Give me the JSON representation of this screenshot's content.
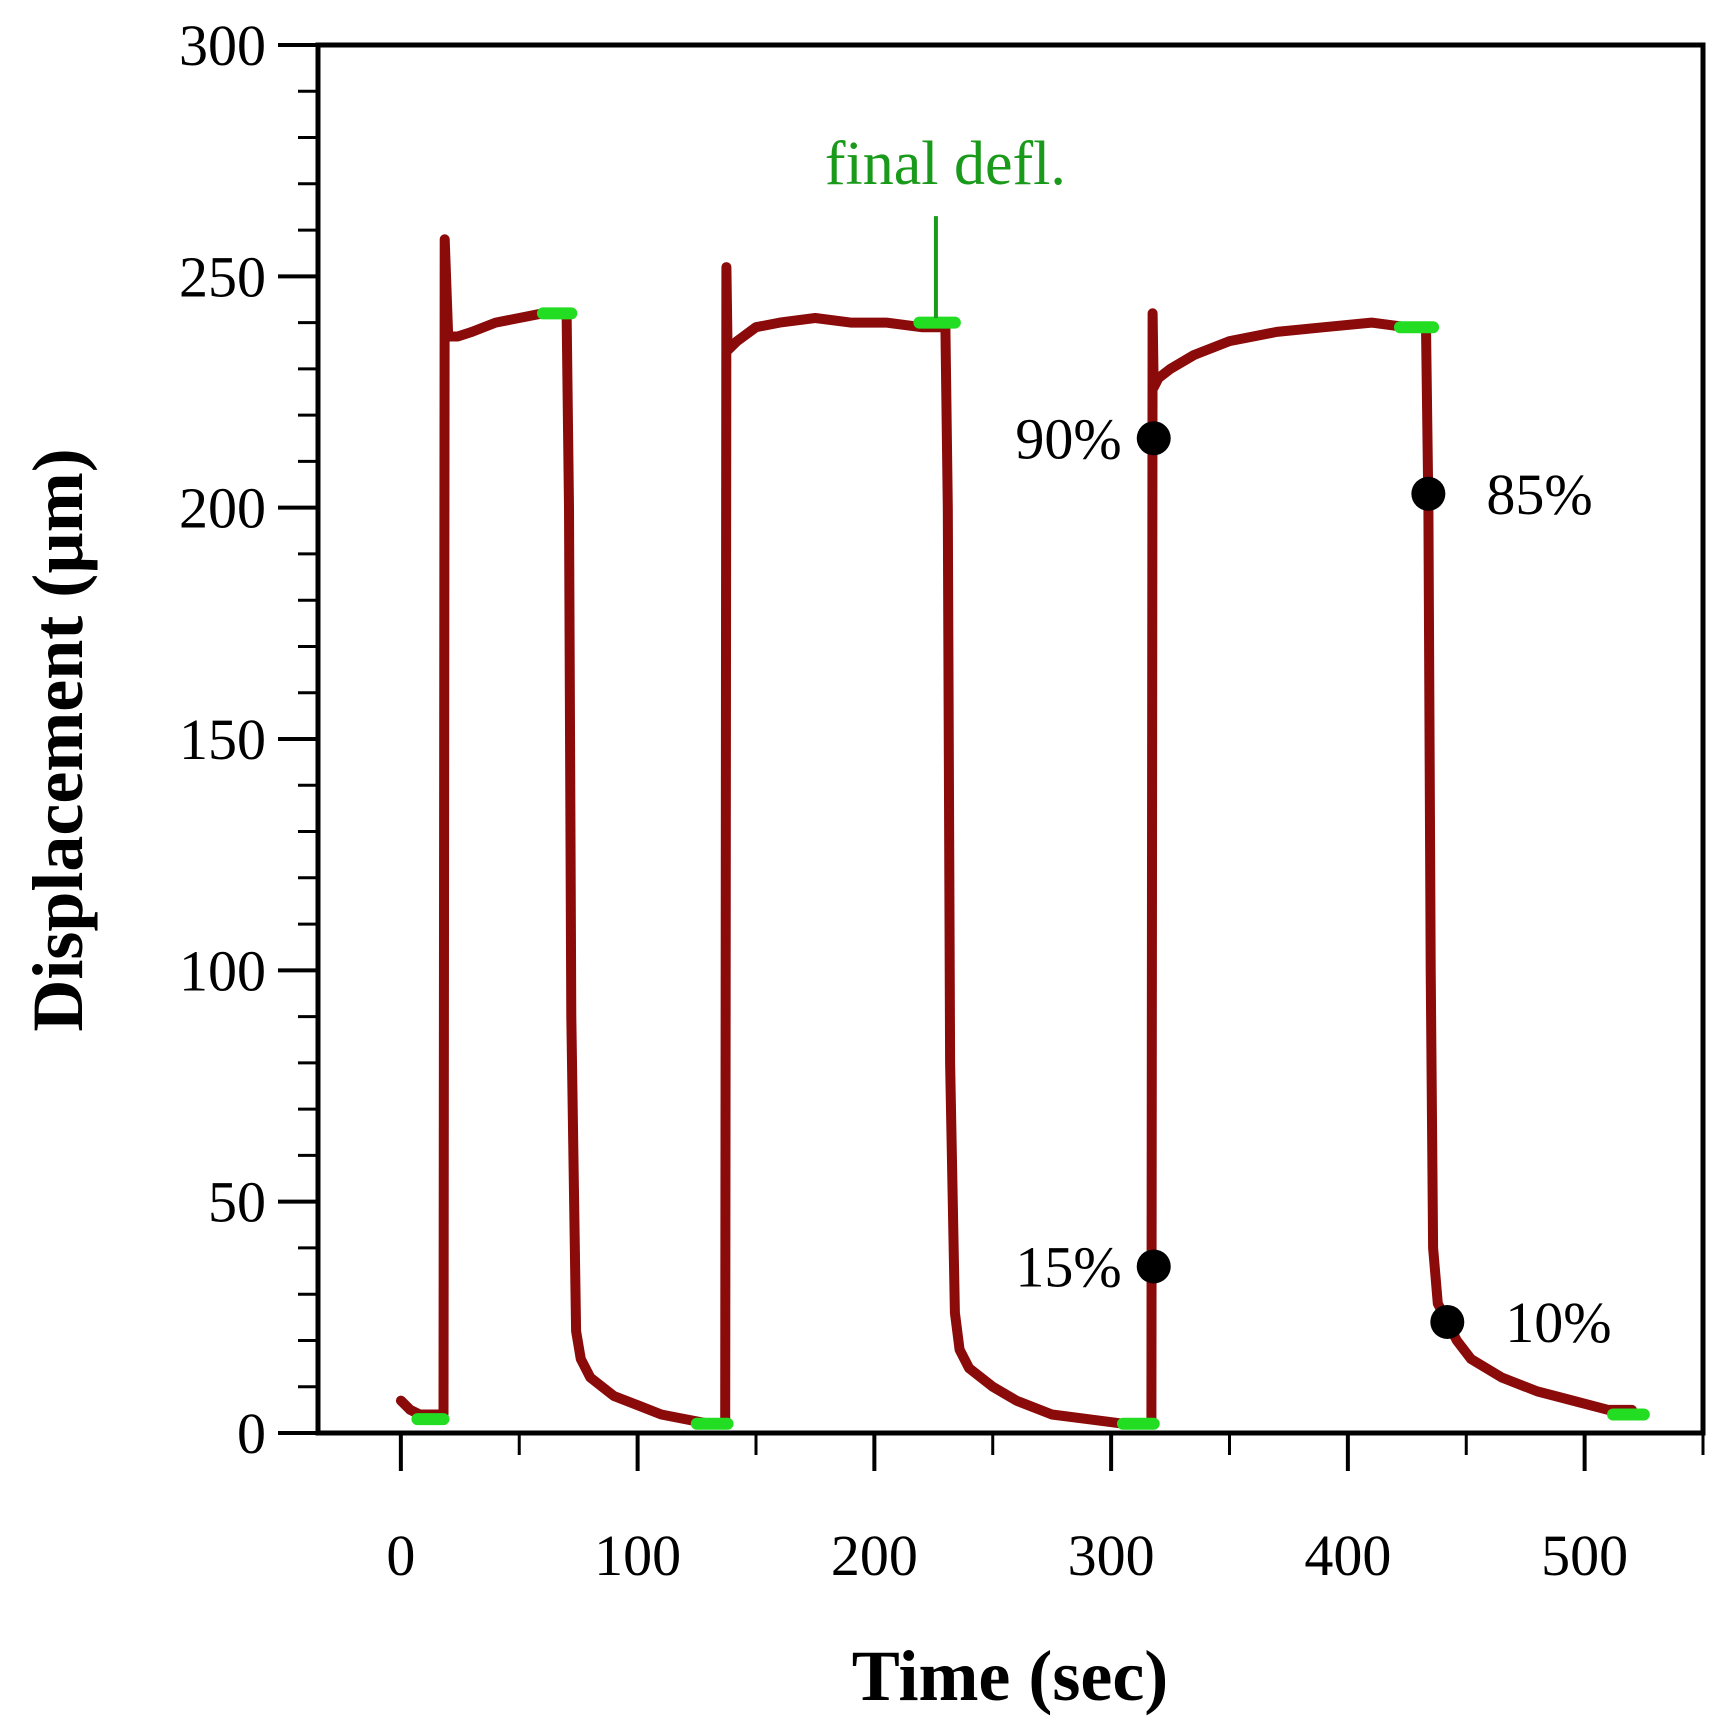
{
  "chart_data": {
    "type": "line",
    "title": "",
    "xlabel": "Time (sec)",
    "ylabel": "Displacement (µm)",
    "xlim": [
      -35,
      550
    ],
    "ylim": [
      0,
      300
    ],
    "xticks": [
      0,
      100,
      200,
      300,
      400,
      500
    ],
    "yticks": [
      0,
      50,
      100,
      150,
      200,
      250,
      300
    ],
    "grid": false,
    "series": [
      {
        "name": "displacement",
        "color": "#8b0a0a",
        "x": [
          0,
          4,
          8,
          12,
          16,
          18,
          18.5,
          20,
          24,
          30,
          40,
          50,
          60,
          66,
          70,
          71,
          72,
          74,
          76,
          80,
          90,
          100,
          110,
          120,
          130,
          136,
          137,
          137.5,
          138,
          142,
          150,
          160,
          175,
          190,
          205,
          220,
          228,
          230,
          231,
          232,
          234,
          236,
          240,
          250,
          260,
          275,
          290,
          305,
          316,
          317,
          317.5,
          318,
          320,
          325,
          335,
          350,
          370,
          390,
          410,
          425,
          433,
          434,
          435,
          436,
          438,
          442,
          446,
          452,
          465,
          480,
          495,
          510,
          520
        ],
        "y": [
          7,
          5,
          4,
          4,
          4,
          4,
          258,
          237,
          237,
          238,
          240,
          241,
          242,
          242,
          242,
          200,
          90,
          22,
          16,
          12,
          8,
          6,
          4,
          3,
          2,
          2,
          2,
          252,
          234,
          236,
          239,
          240,
          241,
          240,
          240,
          239,
          239,
          239,
          200,
          80,
          26,
          18,
          14,
          10,
          7,
          4,
          3,
          2,
          2,
          2,
          242,
          226,
          228,
          230,
          233,
          236,
          238,
          239,
          240,
          239,
          239,
          200,
          100,
          40,
          28,
          24,
          20,
          16,
          12,
          9,
          7,
          5,
          5
        ]
      }
    ],
    "highlights": [
      {
        "name": "final-defl-marker-1",
        "color": "#22dd22",
        "x": [
          7,
          18
        ],
        "y": [
          3,
          3
        ]
      },
      {
        "name": "final-defl-marker-2",
        "color": "#22dd22",
        "x": [
          60,
          72
        ],
        "y": [
          242,
          242
        ]
      },
      {
        "name": "final-defl-marker-3",
        "color": "#22dd22",
        "x": [
          125,
          138
        ],
        "y": [
          2,
          2
        ]
      },
      {
        "name": "final-defl-marker-4",
        "color": "#22dd22",
        "x": [
          219,
          234
        ],
        "y": [
          240,
          240
        ]
      },
      {
        "name": "final-defl-marker-5",
        "color": "#22dd22",
        "x": [
          305,
          318
        ],
        "y": [
          2,
          2
        ]
      },
      {
        "name": "final-defl-marker-6",
        "color": "#22dd22",
        "x": [
          422,
          436
        ],
        "y": [
          239,
          239
        ]
      },
      {
        "name": "final-defl-marker-7",
        "color": "#22dd22",
        "x": [
          512,
          525
        ],
        "y": [
          4,
          4
        ]
      }
    ],
    "annotations": [
      {
        "name": "point-90",
        "label": "90%",
        "x": 318,
        "y": 215,
        "label_side": "left"
      },
      {
        "name": "point-15",
        "label": "15%",
        "x": 318,
        "y": 36,
        "label_side": "left"
      },
      {
        "name": "point-85",
        "label": "85%",
        "x": 434,
        "y": 203,
        "label_side": "right"
      },
      {
        "name": "point-10",
        "label": "10%",
        "x": 442,
        "y": 24,
        "label_side": "right"
      }
    ],
    "note": {
      "text": "final defl.",
      "color": "#1a9a1a",
      "arrow_x": 226,
      "arrow_y_from": 263,
      "arrow_y_to": 241,
      "text_x": 230,
      "text_y": 270
    }
  }
}
